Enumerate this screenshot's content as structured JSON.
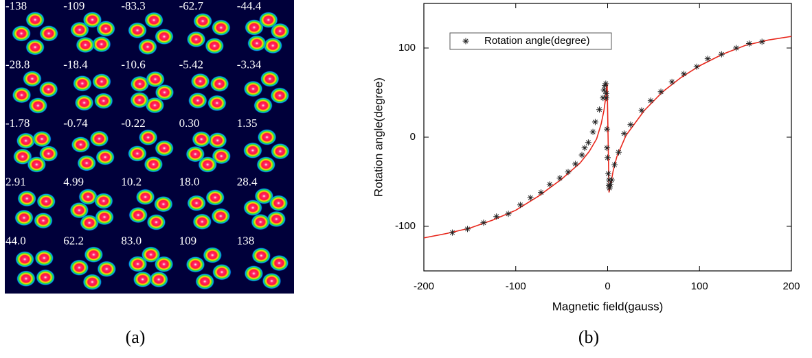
{
  "panel_a": {
    "labels": [
      "-138",
      "-109",
      "-83.3",
      "-62.7",
      "-44.4",
      "-28.8",
      "-18.4",
      "-10.6",
      "-5.42",
      "-3.34",
      "-1.78",
      "-0.74",
      "-0.22",
      "0.30",
      "1.35",
      "2.91",
      "4.99",
      "10.2",
      "18.0",
      "28.4",
      "44.0",
      "62.2",
      "83.0",
      "109",
      "138"
    ]
  },
  "captions": [
    "(a)",
    "(b)"
  ],
  "chart_data": {
    "type": "scatter",
    "x_label": "Magnetic field(gauss)",
    "y_label": "Rotation angle(degree)",
    "xlim": [
      -200,
      200
    ],
    "ylim": [
      -150,
      150
    ],
    "xticks": [
      -200,
      -100,
      0,
      100,
      200
    ],
    "yticks": [
      -100,
      0,
      100
    ],
    "legend": "upper left",
    "series": [
      {
        "name": "Rotation angle(degree)",
        "color": "#222222",
        "x": [
          -169,
          -152.5,
          -135,
          -121,
          -108,
          -95,
          -84,
          -72.5,
          -63,
          -52,
          -43,
          -35,
          -28,
          -25,
          -21,
          -16,
          -13.5,
          -9,
          -5,
          -4,
          -3,
          -2,
          -1.5,
          -1.5,
          -0.7,
          -0.7,
          0,
          0.7,
          1.5,
          1.5,
          2,
          3,
          4.5,
          7.5,
          12,
          18,
          25,
          37,
          47,
          58,
          70,
          83,
          97,
          109,
          124,
          140,
          154,
          168
        ],
        "values": [
          -107,
          -103,
          -96,
          -89,
          -86,
          -76,
          -68,
          -62,
          -53,
          -46,
          -39,
          -30,
          -20,
          -12,
          -6,
          6,
          17,
          31,
          44,
          53,
          58,
          60,
          49,
          44,
          9,
          -12,
          -23,
          -41,
          -48,
          -54,
          -57,
          -53,
          -48,
          -31,
          -17,
          4,
          14,
          30,
          41,
          51,
          62,
          71,
          79,
          88,
          93,
          100,
          105,
          107
        ]
      },
      {
        "color": "#e8261b",
        "x": [
          -200,
          -175,
          -150,
          -125,
          -100,
          -75,
          -50,
          -30,
          -20,
          -12,
          -7,
          -4,
          -2,
          -1,
          -0.5,
          0.5,
          1.5,
          3,
          6,
          10,
          20,
          40,
          60,
          80,
          100,
          125,
          150,
          175,
          200
        ],
        "values": [
          -113,
          -108,
          -102,
          -93,
          -82,
          -66,
          -47,
          -29,
          -16,
          -2,
          15,
          30,
          45,
          58,
          60,
          0,
          -62,
          -55,
          -38,
          -22,
          2,
          30,
          51,
          67,
          80,
          93,
          103,
          109,
          113
        ]
      }
    ]
  }
}
